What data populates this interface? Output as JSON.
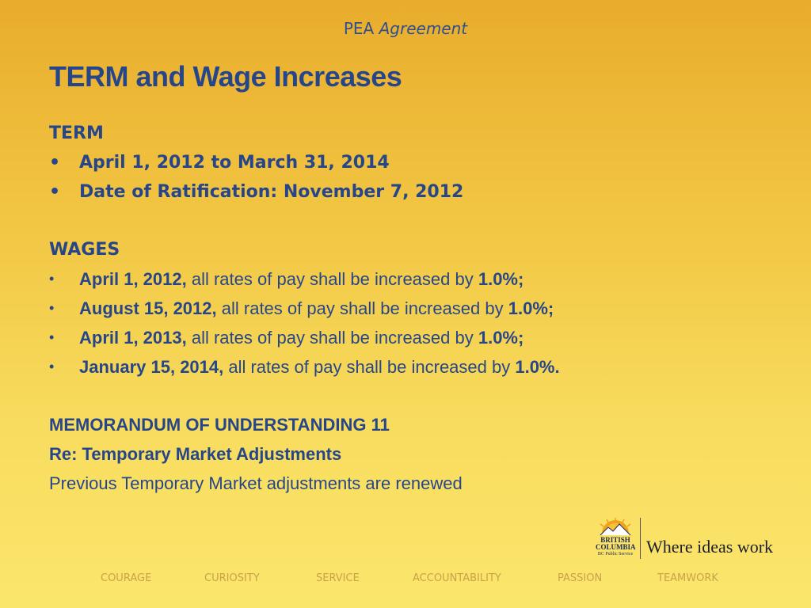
{
  "header": {
    "prefix": "PEA",
    "emph": "Agreement"
  },
  "title": "TERM and Wage Increases",
  "term": {
    "heading": "TERM",
    "items": [
      "April 1, 2012 to March 31, 2014",
      "Date of Ratification: November 7, 2012"
    ]
  },
  "wages": {
    "heading": "WAGES",
    "items": [
      {
        "date": "April 1, 2012,",
        "text": " all rates of pay shall be increased by ",
        "pct": "1.0%;"
      },
      {
        "date": "August 15, 2012,",
        "text": " all rates of pay shall be increased by ",
        "pct": "1.0%;"
      },
      {
        "date": "April 1, 2013,",
        "text": " all rates of pay shall be increased by ",
        "pct": "1.0%;"
      },
      {
        "date": "January 15, 2014,",
        "text": " all rates of pay shall be increased by ",
        "pct": "1.0%."
      }
    ]
  },
  "mou": {
    "heading": "MEMORANDUM OF UNDERSTANDING 11",
    "subheading": "Re: Temporary Market Adjustments",
    "body": "Previous Temporary Market adjustments are renewed"
  },
  "logo": {
    "line1": "BRITISH",
    "line2": "COLUMBIA",
    "line3": "BC Public Service",
    "tagline": "Where ideas work"
  },
  "footer": [
    "COURAGE",
    "CURIOSITY",
    "SERVICE",
    "ACCOUNTABILITY",
    "PASSION",
    "TEAMWORK"
  ],
  "colors": {
    "text_blue": "#27468a",
    "footer_gold": "#c9a24a",
    "bg_top": "#e9ac2c",
    "bg_bottom": "#fbe66c"
  }
}
